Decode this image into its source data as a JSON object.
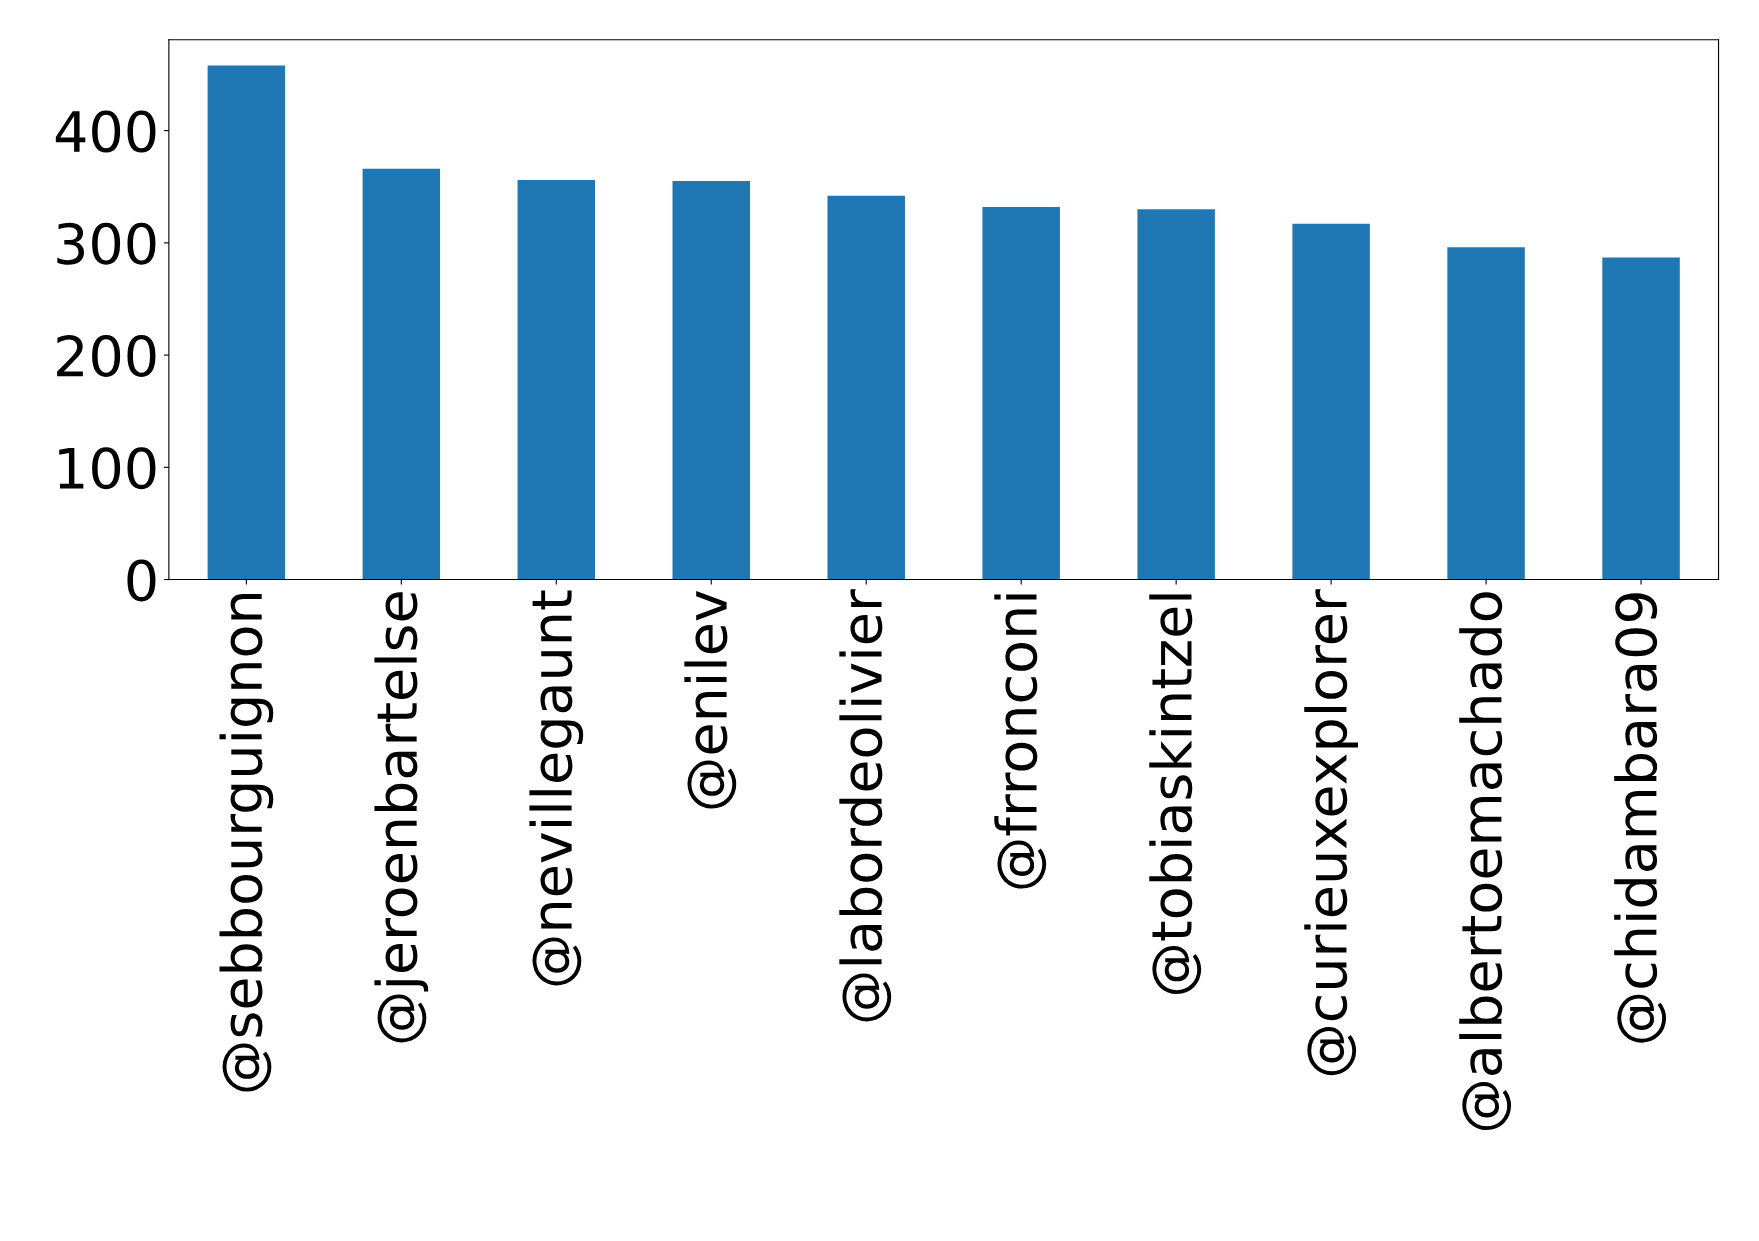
{
  "chart_data": {
    "type": "bar",
    "categories": [
      "@sebbourguignon",
      "@jeroenbartelse",
      "@nevillegaunt",
      "@enilev",
      "@labordeolivier",
      "@frronconi",
      "@tobiaskintzel",
      "@curieuxexplorer",
      "@albertoemachado",
      "@chidambara09"
    ],
    "values": [
      458,
      366,
      356,
      355,
      342,
      332,
      330,
      317,
      296,
      287
    ],
    "color": "#1f77b4",
    "ylim": [
      0,
      481
    ],
    "yticks": [
      0,
      100,
      200,
      300,
      400
    ],
    "grid": false,
    "legend": false
  }
}
